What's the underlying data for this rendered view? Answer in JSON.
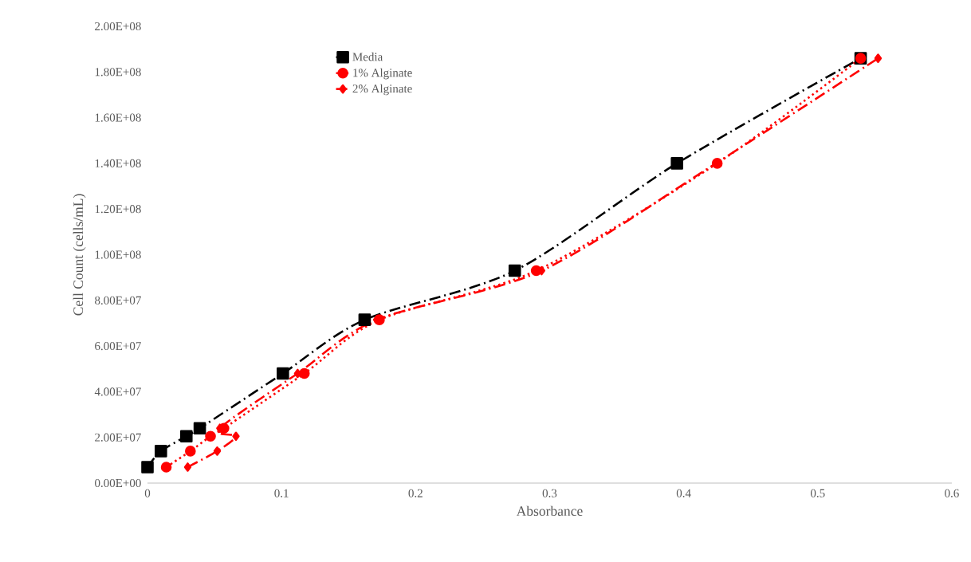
{
  "chart_data": {
    "type": "line",
    "xlabel": "Absorbance",
    "ylabel": "Cell Count (cells/mL)",
    "xlim": [
      0,
      0.6
    ],
    "xticks": [
      0,
      0.1,
      0.2,
      0.3,
      0.4,
      0.5,
      0.6
    ],
    "ylim": [
      0,
      200000000
    ],
    "yticks": [
      {
        "value": 0,
        "label": "0.00E+00"
      },
      {
        "value": 20000000,
        "label": "2.00E+07"
      },
      {
        "value": 40000000,
        "label": "4.00E+07"
      },
      {
        "value": 60000000,
        "label": "6.00E+07"
      },
      {
        "value": 80000000,
        "label": "8.00E+07"
      },
      {
        "value": 100000000,
        "label": "1.00E+08"
      },
      {
        "value": 120000000,
        "label": "1.20E+08"
      },
      {
        "value": 140000000,
        "label": "1.40E+08"
      },
      {
        "value": 160000000,
        "label": "1.60E+08"
      },
      {
        "value": 180000000,
        "label": "1.80E+08"
      },
      {
        "value": 200000000,
        "label": "2.00E+08"
      }
    ],
    "grid": false,
    "legend": "top left",
    "series": [
      {
        "name": "Media",
        "color": "#000000",
        "marker": "square",
        "line_style": "dashed",
        "x": [
          0,
          0.01,
          0.029,
          0.039,
          0.101,
          0.162,
          0.274,
          0.395,
          0.532
        ],
        "values": [
          7000000,
          14000000,
          20500000,
          24000000,
          48000000,
          71500000,
          93000000,
          140000000,
          186000000
        ]
      },
      {
        "name": "1% Alginate",
        "color": "#ff0000",
        "marker": "circle",
        "line_style": "dotted",
        "x": [
          0.014,
          0.032,
          0.047,
          0.057,
          0.117,
          0.173,
          0.29,
          0.425,
          0.532
        ],
        "values": [
          7000000,
          14000000,
          20500000,
          24000000,
          48000000,
          71500000,
          93000000,
          140000000,
          186000000
        ]
      },
      {
        "name": "2% Alginate",
        "color": "#ff0000",
        "marker": "diamond",
        "line_style": "dashed",
        "x": [
          0.03,
          0.052,
          0.066,
          0.054,
          0.112,
          0.171,
          0.294,
          0.424,
          0.545
        ],
        "values": [
          7000000,
          14000000,
          20500000,
          24000000,
          48000000,
          71500000,
          93000000,
          140000000,
          186000000
        ]
      }
    ]
  }
}
